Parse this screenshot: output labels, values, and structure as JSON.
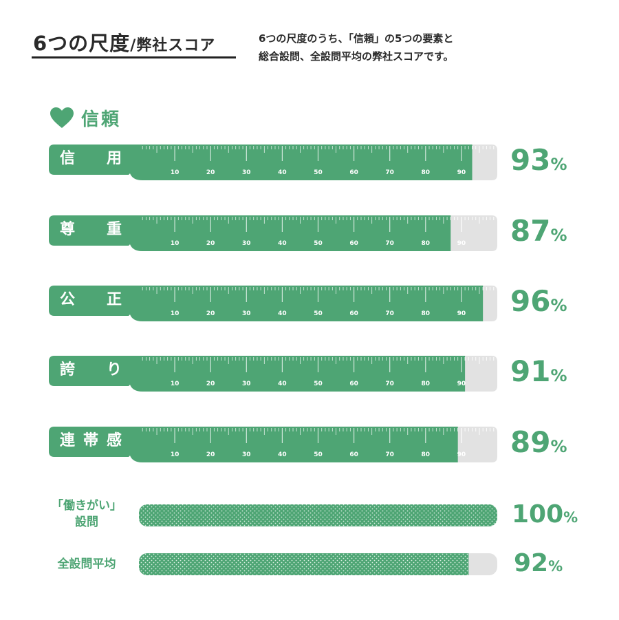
{
  "header": {
    "title": "6つの尺度",
    "title_sub": "/弊社スコア",
    "desc_line1": "6つの尺度のうち、「信頼」の5つの要素と",
    "desc_line2": "総合設問、全設問平均の弊社スコアです。"
  },
  "section": {
    "icon": "heart-icon",
    "label": "信頼"
  },
  "colors": {
    "accent": "#4ea574",
    "track": "#e2e2e2",
    "text": "#2a2a2a"
  },
  "chart_data": {
    "type": "bar",
    "orientation": "horizontal",
    "xlim": [
      0,
      100
    ],
    "tick_labels": [
      "10",
      "20",
      "30",
      "40",
      "50",
      "60",
      "70",
      "80",
      "90"
    ],
    "unit": "%",
    "categories": [
      "信用",
      "尊重",
      "公正",
      "誇り",
      "連帯感",
      "「働きがい」設問",
      "全設問平均"
    ],
    "values": [
      93,
      87,
      96,
      91,
      89,
      100,
      92
    ],
    "ruler_rows": [
      {
        "chars": [
          "信",
          "用"
        ],
        "value": 93,
        "value_label": "93",
        "unit": "%"
      },
      {
        "chars": [
          "尊",
          "重"
        ],
        "value": 87,
        "value_label": "87",
        "unit": "%"
      },
      {
        "chars": [
          "公",
          "正"
        ],
        "value": 96,
        "value_label": "96",
        "unit": "%"
      },
      {
        "chars": [
          "誇",
          "り"
        ],
        "value": 91,
        "value_label": "91",
        "unit": "%"
      },
      {
        "chars": [
          "連",
          "帯",
          "感"
        ],
        "value": 89,
        "value_label": "89",
        "unit": "%"
      }
    ],
    "dotted_rows": [
      {
        "label_lines": [
          "「働きがい」",
          "設問"
        ],
        "value": 100,
        "value_label": "100",
        "unit": "%"
      },
      {
        "label_lines": [
          "全設問平均"
        ],
        "value": 92,
        "value_label": "92",
        "unit": "%"
      }
    ]
  }
}
